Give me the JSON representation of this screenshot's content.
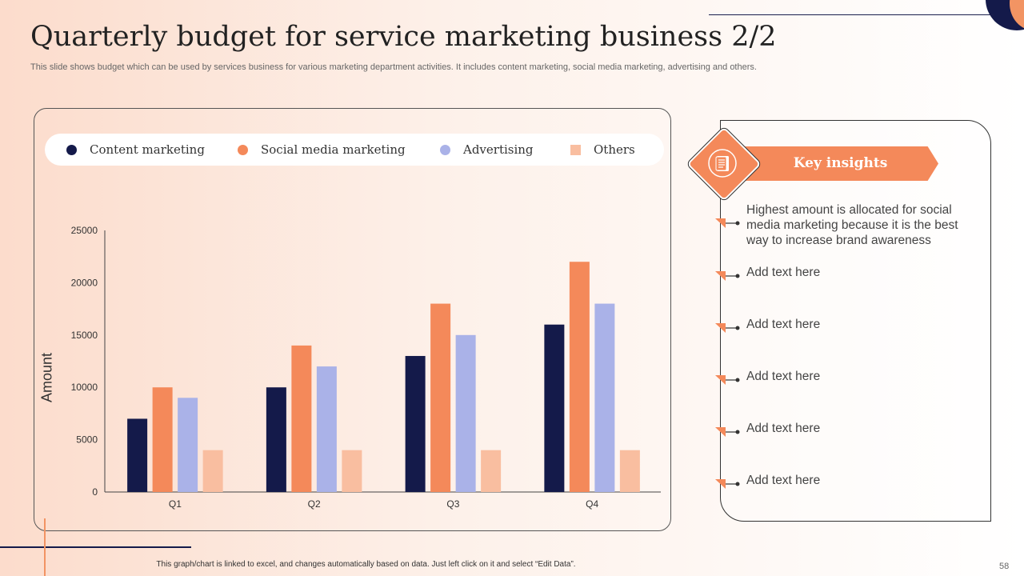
{
  "slide": {
    "title": "Quarterly budget for service marketing business 2/2",
    "subtitle": "This slide shows budget which can be used by services business for various marketing department activities. It includes content marketing, social media marketing, advertising and others.",
    "footer_note": "This graph/chart is linked to excel, and changes automatically based on data. Just left click on it and select “Edit Data”.",
    "page_number": "58"
  },
  "legend": [
    {
      "label": "Content marketing",
      "color": "#141a4a",
      "shape": "circle"
    },
    {
      "label": "Social media marketing",
      "color": "#f4895a",
      "shape": "circle"
    },
    {
      "label": "Advertising",
      "color": "#aab2e8",
      "shape": "circle"
    },
    {
      "label": "Others",
      "color": "#f9bea0",
      "shape": "square"
    }
  ],
  "chart_data": {
    "type": "bar",
    "title": "",
    "xlabel": "",
    "ylabel": "Amount",
    "categories": [
      "Q1",
      "Q2",
      "Q3",
      "Q4"
    ],
    "ylim": [
      0,
      25000
    ],
    "yticks": [
      0,
      5000,
      10000,
      15000,
      20000,
      25000
    ],
    "grid": false,
    "series": [
      {
        "name": "Content marketing",
        "color": "#141a4a",
        "values": [
          7000,
          10000,
          13000,
          16000
        ]
      },
      {
        "name": "Social media marketing",
        "color": "#f4895a",
        "values": [
          10000,
          14000,
          18000,
          22000
        ]
      },
      {
        "name": "Advertising",
        "color": "#aab2e8",
        "values": [
          9000,
          12000,
          15000,
          18000
        ]
      },
      {
        "name": "Others",
        "color": "#f9bea0",
        "values": [
          4000,
          4000,
          4000,
          4000
        ]
      }
    ]
  },
  "insights": {
    "heading": "Key insights",
    "icon": "document-list-icon",
    "items": [
      "Highest amount  is allocated for social media marketing because it is the best way to increase brand awareness",
      "Add text here",
      "Add text here",
      "Add text here",
      "Add text here",
      "Add text here"
    ]
  }
}
